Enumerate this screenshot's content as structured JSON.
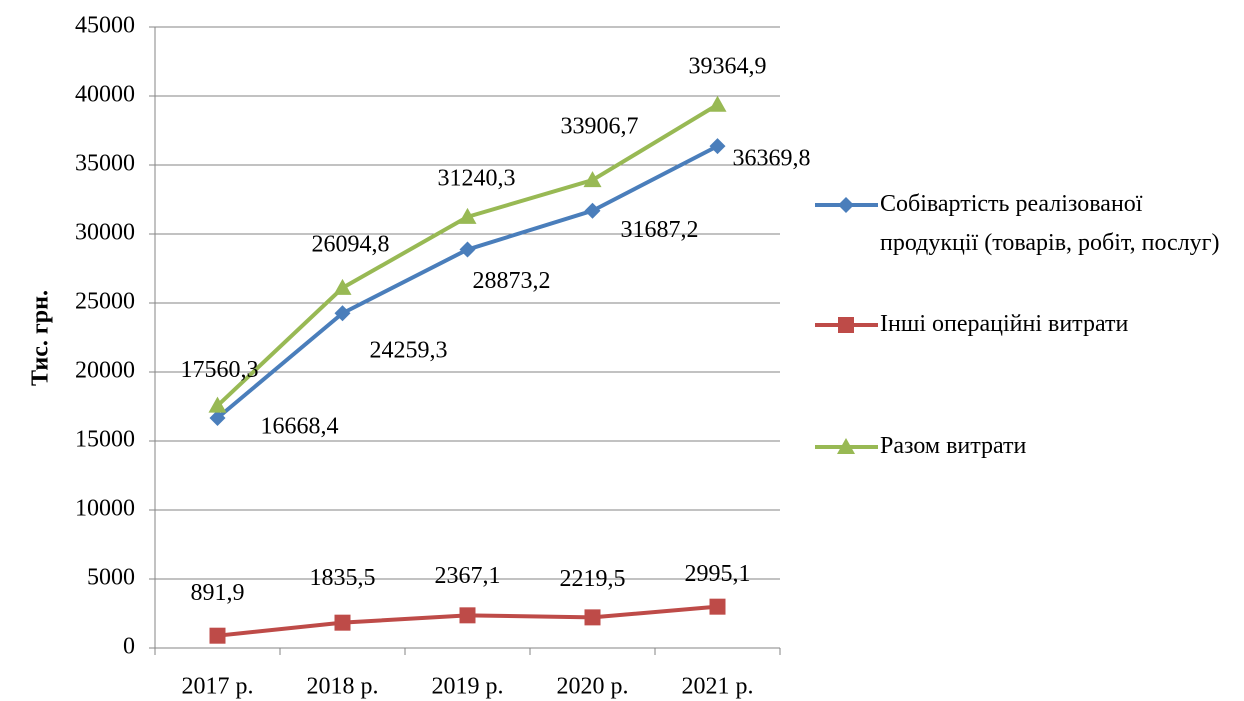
{
  "chart_data": {
    "type": "line",
    "y_label": "Тис. грн.",
    "categories": [
      "2017 р.",
      "2018 р.",
      "2019 р.",
      "2020 р.",
      "2021 р."
    ],
    "series": [
      {
        "name": "Собівартість реалізованої продукції (товарів, робіт, послуг)",
        "color": "#4a7ebb",
        "marker": "diamond",
        "values": [
          16668.4,
          24259.3,
          28873.2,
          31687.2,
          36369.8
        ],
        "value_labels": [
          "16668,4",
          "24259,3",
          "28873,2",
          "31687,2",
          "36369,8"
        ]
      },
      {
        "name": "Інші операційні витрати",
        "color": "#be4b48",
        "marker": "square",
        "values": [
          891.9,
          1835.5,
          2367.1,
          2219.5,
          2995.1
        ],
        "value_labels": [
          "891,9",
          "1835,5",
          "2367,1",
          "2219,5",
          "2995,1"
        ]
      },
      {
        "name": "Разом витрати",
        "color": "#98b954",
        "marker": "triangle",
        "values": [
          17560.3,
          26094.8,
          31240.3,
          33906.7,
          39364.9
        ],
        "value_labels": [
          "17560,3",
          "26094,8",
          "31240,3",
          "33906,7",
          "39364,9"
        ]
      }
    ],
    "ylim": [
      0,
      45000
    ],
    "yticks": [
      0,
      5000,
      10000,
      15000,
      20000,
      25000,
      30000,
      35000,
      40000,
      45000
    ],
    "grid": true,
    "legend": "right"
  }
}
